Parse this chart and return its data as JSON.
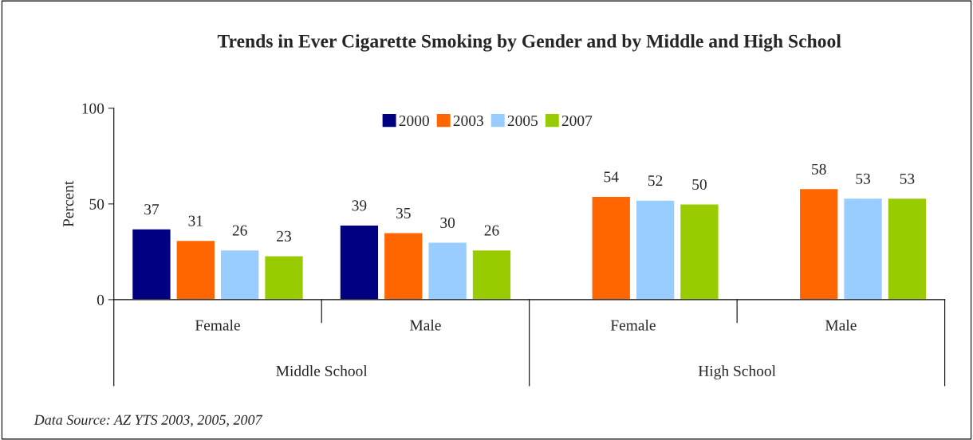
{
  "chart_data": {
    "type": "bar",
    "title": "Trends in Ever Cigarette Smoking by Gender and by Middle and High School",
    "categories": [
      "Female",
      "Male",
      "Female",
      "Male"
    ],
    "series": [
      {
        "name": "2000",
        "color": "#000080",
        "values": [
          37,
          39,
          null,
          null
        ]
      },
      {
        "name": "2003",
        "color": "#ff6600",
        "values": [
          31,
          35,
          54,
          58
        ]
      },
      {
        "name": "2005",
        "color": "#99ccff",
        "values": [
          26,
          30,
          52,
          53
        ]
      },
      {
        "name": "2007",
        "color": "#99cc00",
        "values": [
          23,
          26,
          50,
          53
        ]
      }
    ],
    "ylabel": "Percent",
    "ylim": [
      0,
      100
    ],
    "yticks": [
      0,
      50,
      100
    ],
    "data_labels": true,
    "grid": false,
    "legend": "top",
    "annotations": [
      "Middle School",
      "High School",
      "Data Source: AZ YTS 2003, 2005, 2007"
    ]
  }
}
